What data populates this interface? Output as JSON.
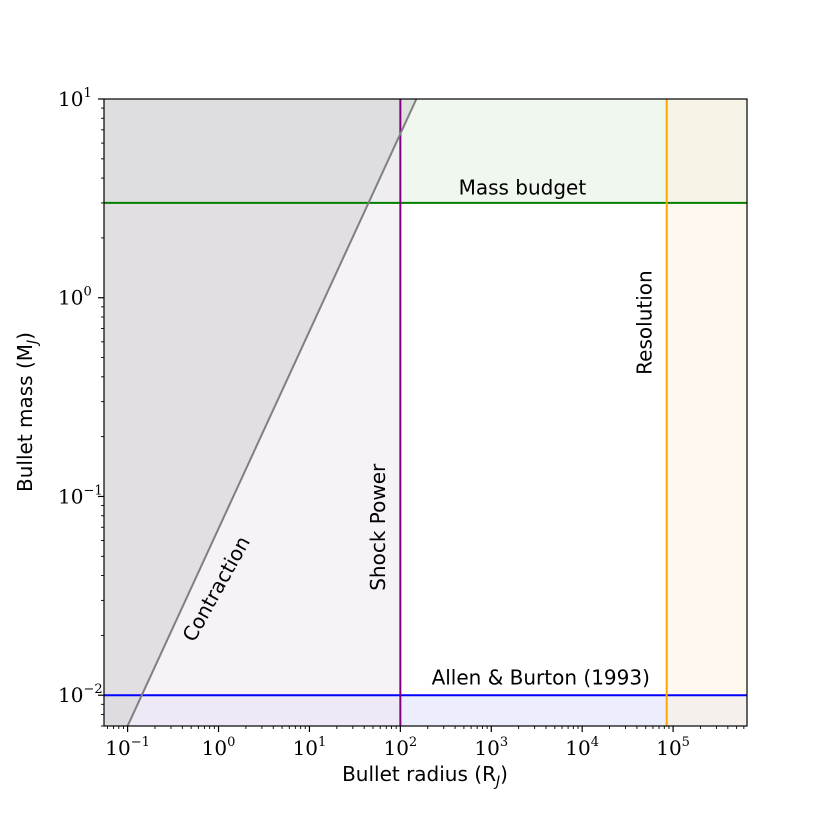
{
  "chart_data": {
    "type": "line",
    "title": "",
    "xlabel": "Bullet radius (R",
    "xlabel_sub": "J",
    "xlabel_end": ")",
    "ylabel": "Bullet mass (M",
    "ylabel_sub": "J",
    "ylabel_end": ")",
    "xscale": "log",
    "yscale": "log",
    "xlim": [
      0.055,
      650000
    ],
    "ylim": [
      0.007,
      10
    ],
    "x_ticks": [
      {
        "value": 0.1,
        "base": "10",
        "exp": "−1"
      },
      {
        "value": 1,
        "base": "10",
        "exp": "0"
      },
      {
        "value": 10,
        "base": "10",
        "exp": "1"
      },
      {
        "value": 100,
        "base": "10",
        "exp": "2"
      },
      {
        "value": 1000,
        "base": "10",
        "exp": "3"
      },
      {
        "value": 10000,
        "base": "10",
        "exp": "4"
      },
      {
        "value": 100000,
        "base": "10",
        "exp": "5"
      }
    ],
    "y_ticks": [
      {
        "value": 0.01,
        "base": "10",
        "exp": "−2"
      },
      {
        "value": 0.1,
        "base": "10",
        "exp": "−1"
      },
      {
        "value": 1,
        "base": "10",
        "exp": "0"
      },
      {
        "value": 10,
        "base": "10",
        "exp": "1"
      }
    ],
    "grid": false,
    "constraints": [
      {
        "name": "Mass budget",
        "kind": "hline",
        "value": 3,
        "excluded_side": "above",
        "color": "#008000",
        "fill": "#e4f1e1"
      },
      {
        "name": "Allen & Burton (1993)",
        "kind": "hline",
        "value": 0.01,
        "excluded_side": "below",
        "color": "#0000ff",
        "fill": "#dfe0fb"
      },
      {
        "name": "Shock Power",
        "kind": "vline",
        "value": 100,
        "excluded_side": "left",
        "color": "#800080",
        "fill": "#f0e5f2"
      },
      {
        "name": "Resolution",
        "kind": "vline",
        "value": 85000,
        "excluded_side": "right",
        "color": "#ffa500",
        "fill": "#fef3e0"
      },
      {
        "name": "Contraction",
        "kind": "powerline",
        "points": [
          [
            0.1,
            0.007
          ],
          [
            150,
            10
          ]
        ],
        "excluded_side": "left",
        "color": "#808080",
        "fill": "#d0d0d0"
      }
    ],
    "annotations": [
      {
        "text": "Mass budget",
        "anchor": [
          2200,
          3.3
        ],
        "rotation": 0
      },
      {
        "text": "Allen & Burton (1993)",
        "anchor": [
          3500,
          0.0113
        ],
        "rotation": 0
      },
      {
        "text": "Shock Power",
        "anchor": [
          68,
          0.07
        ],
        "rotation": -90
      },
      {
        "text": "Resolution",
        "anchor": [
          58000,
          0.75
        ],
        "rotation": -90
      },
      {
        "text": "Contraction",
        "anchor": [
          1.1,
          0.033
        ],
        "rotation": -61
      }
    ]
  }
}
